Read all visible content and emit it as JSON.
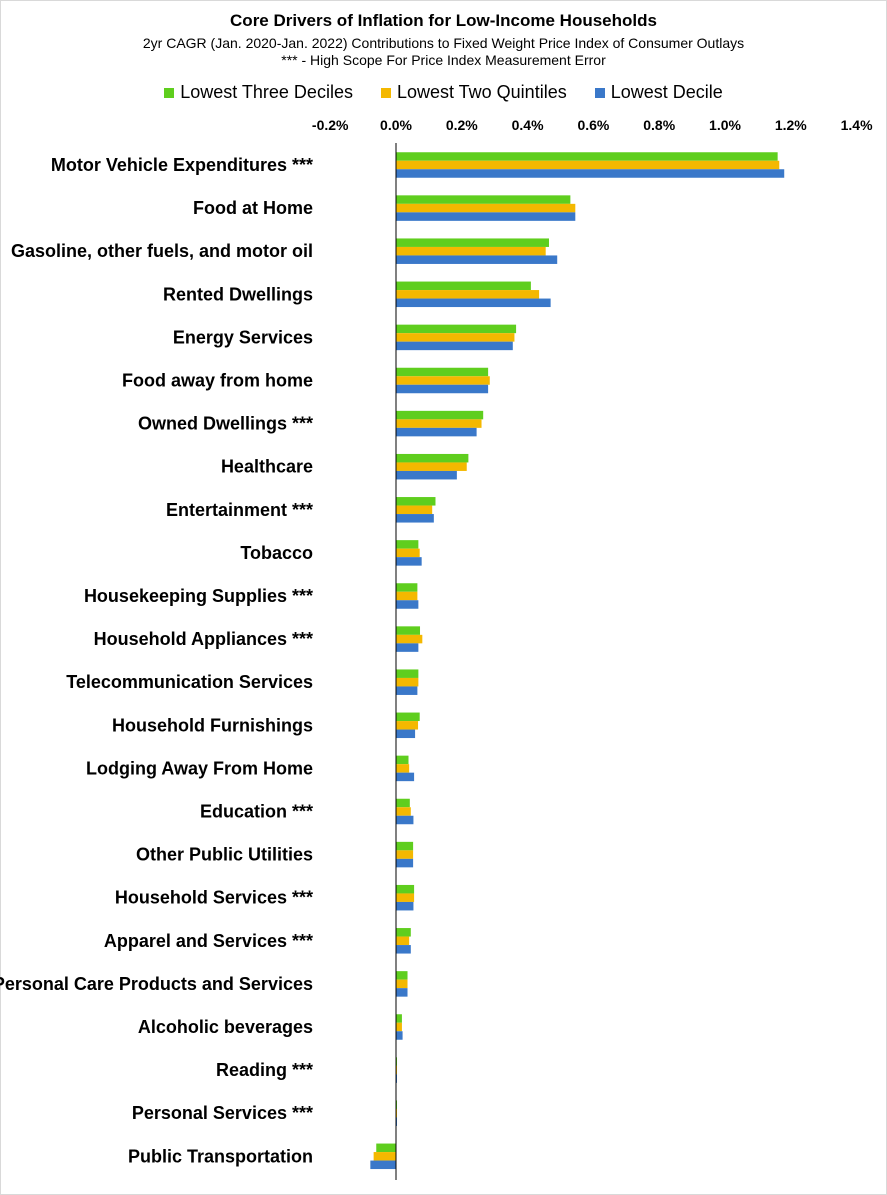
{
  "chart_data": {
    "type": "bar",
    "orientation": "horizontal",
    "title": "Core Drivers of  Inflation for Low-Income Households",
    "subtitle": "2yr CAGR (Jan. 2020-Jan. 2022) Contributions to Fixed Weight Price Index of Consumer Outlays",
    "note": "*** -  High Scope For Price Index Measurement Error",
    "xlabel": "",
    "ylabel": "",
    "xlim": [
      -0.2,
      1.4
    ],
    "x_ticks": [
      -0.2,
      0.0,
      0.2,
      0.4,
      0.6,
      0.8,
      1.0,
      1.2,
      1.4
    ],
    "x_tick_labels": [
      "-0.2%",
      "0.0%",
      "0.2%",
      "0.4%",
      "0.6%",
      "0.8%",
      "1.0%",
      "1.2%",
      "1.4%"
    ],
    "legend_position": "top",
    "grid": false,
    "categories": [
      "Motor Vehicle Expenditures ***",
      "Food at Home",
      "Gasoline, other fuels, and motor oil",
      "Rented Dwellings",
      "Energy Services",
      "Food away from home",
      "Owned Dwellings ***",
      "Healthcare",
      "Entertainment ***",
      "Tobacco",
      "Housekeeping Supplies ***",
      "Household Appliances ***",
      "Telecommunication Services",
      "Household Furnishings",
      "Lodging Away From Home",
      "Education ***",
      "Other Public Utilities",
      "Household Services ***",
      "Apparel and Services ***",
      "Personal Care Products and Services",
      "Alcoholic beverages",
      "Reading ***",
      "Personal Services ***",
      "Public Transportation"
    ],
    "series": [
      {
        "name": "Lowest Three Deciles",
        "color": "#5fce1e",
        "values": [
          1.16,
          0.53,
          0.465,
          0.41,
          0.365,
          0.28,
          0.265,
          0.22,
          0.12,
          0.068,
          0.065,
          0.073,
          0.068,
          0.072,
          0.038,
          0.042,
          0.052,
          0.055,
          0.045,
          0.035,
          0.018,
          0.003,
          0.002,
          -0.06
        ]
      },
      {
        "name": "Lowest Two Quintiles",
        "color": "#f4b800",
        "values": [
          1.165,
          0.545,
          0.455,
          0.435,
          0.36,
          0.285,
          0.26,
          0.215,
          0.11,
          0.072,
          0.065,
          0.08,
          0.068,
          0.067,
          0.04,
          0.045,
          0.052,
          0.055,
          0.04,
          0.035,
          0.018,
          0.003,
          0.002,
          -0.068
        ]
      },
      {
        "name": "Lowest Decile",
        "color": "#3a78c9",
        "values": [
          1.18,
          0.545,
          0.49,
          0.47,
          0.355,
          0.28,
          0.245,
          0.185,
          0.115,
          0.078,
          0.068,
          0.068,
          0.065,
          0.058,
          0.055,
          0.053,
          0.052,
          0.053,
          0.045,
          0.035,
          0.02,
          0.003,
          0.002,
          -0.078
        ]
      }
    ]
  }
}
